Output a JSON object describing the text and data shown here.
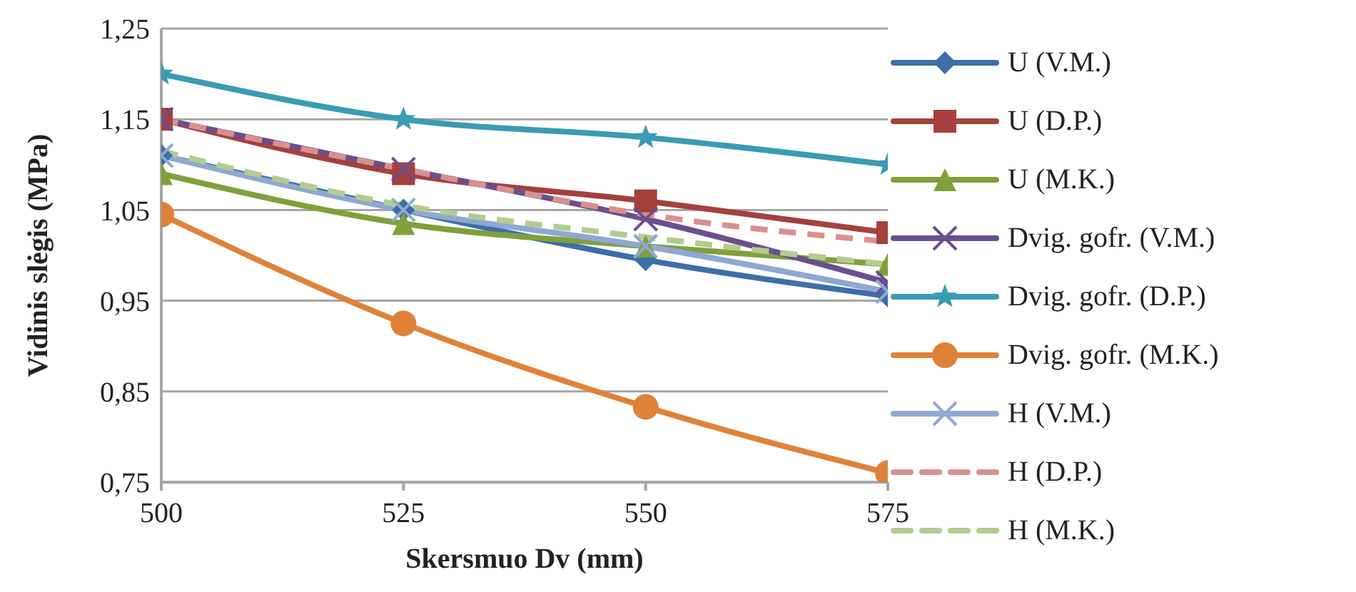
{
  "chart_data": {
    "type": "line",
    "xlabel": "Skersmuo Dv (mm)",
    "ylabel": "Vidinis slėgis (MPa)",
    "x": [
      500,
      525,
      550,
      575
    ],
    "xlim": [
      500,
      575
    ],
    "xticks": [
      500,
      525,
      550,
      575
    ],
    "ylim": [
      0.75,
      1.25
    ],
    "yticks": [
      {
        "value": 0.75,
        "label": "0,75"
      },
      {
        "value": 0.85,
        "label": "0,85"
      },
      {
        "value": 0.95,
        "label": "0,95"
      },
      {
        "value": 1.05,
        "label": "1,05"
      },
      {
        "value": 1.15,
        "label": "1,15"
      },
      {
        "value": 1.25,
        "label": "1,25"
      }
    ],
    "grid": "y",
    "legend": "right",
    "series": [
      {
        "name": "U (V.M.)",
        "color": "#3c6eaa",
        "marker": "diamond",
        "values": [
          1.11,
          1.05,
          0.995,
          0.955
        ]
      },
      {
        "name": "U (D.P.)",
        "color": "#a5403d",
        "marker": "square",
        "values": [
          1.15,
          1.09,
          1.06,
          1.025
        ]
      },
      {
        "name": "U (M.K.)",
        "color": "#7fa03a",
        "marker": "triangle",
        "values": [
          1.09,
          1.035,
          1.01,
          0.99
        ]
      },
      {
        "name": "Dvig. gofr. (V.M.)",
        "color": "#6a4f8e",
        "marker": "cross",
        "values": [
          1.15,
          1.095,
          1.04,
          0.97
        ]
      },
      {
        "name": "Dvig. gofr. (D.P.)",
        "color": "#3a9bb2",
        "marker": "star",
        "values": [
          1.2,
          1.15,
          1.13,
          1.1
        ]
      },
      {
        "name": "Dvig. gofr. (M.K.)",
        "color": "#e0813a",
        "marker": "circle",
        "values": [
          1.045,
          0.925,
          0.833,
          0.76
        ]
      },
      {
        "name": "H (V.M.)",
        "color": "#8ea8d2",
        "marker": "cross",
        "values": [
          1.11,
          1.05,
          1.01,
          0.96
        ]
      },
      {
        "name": "H (D.P.)",
        "color": "#d9908e",
        "marker": "none",
        "line_style": "dashed",
        "values": [
          1.15,
          1.095,
          1.045,
          1.015
        ]
      },
      {
        "name": "H (M.K.)",
        "color": "#b3cc8f",
        "marker": "none",
        "line_style": "dashed",
        "values": [
          1.115,
          1.055,
          1.02,
          0.99
        ]
      }
    ]
  }
}
